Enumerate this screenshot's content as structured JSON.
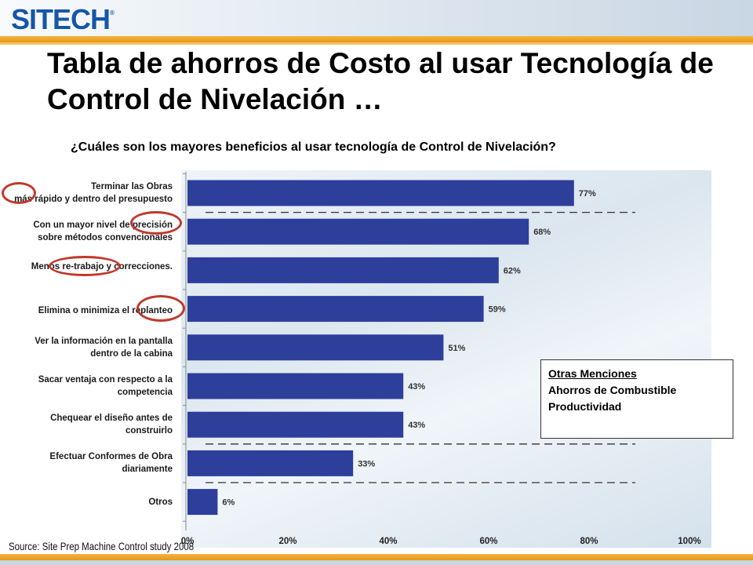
{
  "logo": {
    "text": "SITECH",
    "tm": "®"
  },
  "title": "Tabla de ahorros de Costo al usar Tecnología de Control de Nivelación …",
  "subtitle": "¿Cuáles son los mayores beneficios al usar tecnología de Control de Nivelación?",
  "chart_data": {
    "type": "bar",
    "orientation": "horizontal",
    "categories": [
      [
        "Terminar las Obras",
        "más rápido y dentro del presupuesto"
      ],
      [
        "Con un mayor nivel de precisión",
        "sobre métodos convencionales"
      ],
      [
        "Menos re-trabajo y correcciones."
      ],
      [
        "Elimina o minimiza el replanteo"
      ],
      [
        "Ver la información en la pantalla",
        "dentro de la cabina"
      ],
      [
        "Sacar ventaja con respecto a la",
        "competencia"
      ],
      [
        "Chequear el diseño antes de",
        "construirlo"
      ],
      [
        "Efectuar Conformes de Obra",
        "diariamente"
      ],
      [
        "Otros"
      ]
    ],
    "values": [
      77,
      68,
      62,
      59,
      51,
      43,
      43,
      33,
      6
    ],
    "value_labels": [
      "77%",
      "68%",
      "62%",
      "59%",
      "51%",
      "43%",
      "43%",
      "33%",
      "6%"
    ],
    "x_ticks": [
      "0%",
      "20%",
      "40%",
      "60%",
      "80%",
      "100%"
    ],
    "x_tick_values": [
      0,
      20,
      40,
      60,
      80,
      100
    ],
    "xlim": [
      0,
      100
    ],
    "bar_color": "#2d3e9b",
    "separators_after_index": [
      0,
      6,
      7
    ],
    "highlighted_categories": [
      0,
      1,
      2,
      3
    ],
    "grid": false,
    "legend": "none"
  },
  "other_mentions": {
    "title": "Otras Menciones",
    "items": [
      "Ahorros de Combustible",
      "Productividad"
    ]
  },
  "source": "Source: Site Prep Machine Control study 2008",
  "colors": {
    "accent_orange": "#e7961a",
    "brand_blue": "#1557a8",
    "highlight_circle": "#c0392b"
  }
}
